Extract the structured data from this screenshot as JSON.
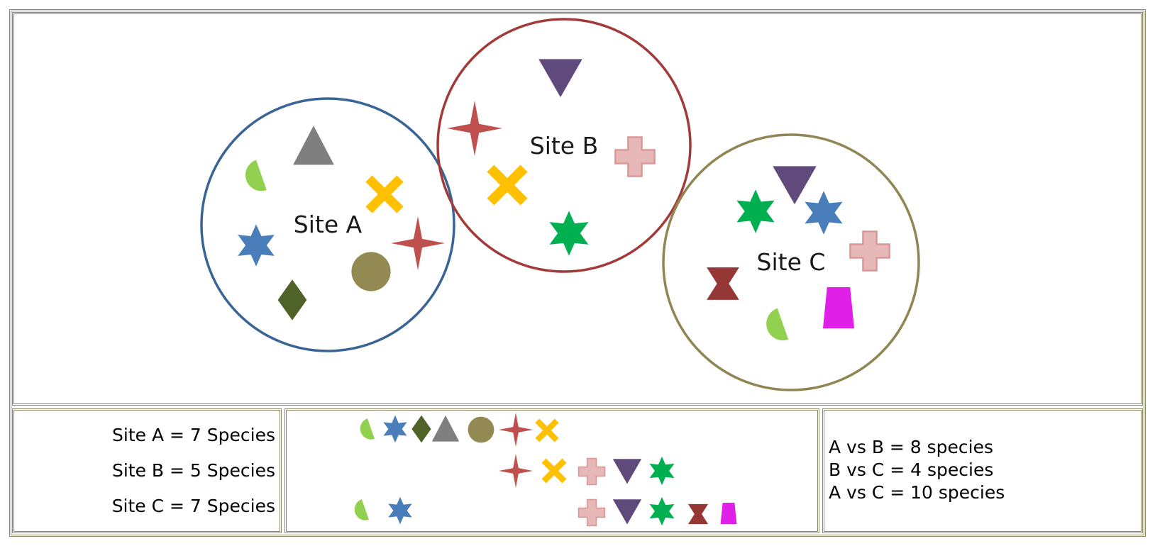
{
  "sites": [
    {
      "label": "Site A",
      "ring_color": "#3a6496"
    },
    {
      "label": "Site B",
      "ring_color": "#a33a3a"
    },
    {
      "label": "Site C",
      "ring_color": "#8f8654"
    }
  ],
  "species_counts": [
    "Site A = 7 Species",
    "Site B = 5 Species",
    "Site C = 7 Species"
  ],
  "comparisons": [
    "A vs B = 8 species",
    "B vs C = 4 species",
    "A vs C = 10 species"
  ],
  "species_icons": {
    "green-semicircle": "#92d050",
    "blue-star": "#4a7ebb",
    "olive-diamond": "#4f6228",
    "gray-triangle": "#7f7f7f",
    "khaki-circle": "#938953",
    "red-four-point-star": "#c0504d",
    "yellow-cross": "#ffc000",
    "pink-plus": "#e6b9b8",
    "purple-inverted-triangle": "#604a7b",
    "green-star": "#00b050",
    "maroon-hourglass": "#953735",
    "magenta-trapezoid": "#e020e8"
  }
}
